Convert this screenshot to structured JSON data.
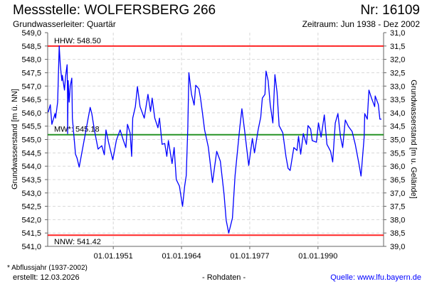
{
  "header": {
    "title": "Messstelle: WOLFERSBERG 266",
    "number": "Nr: 16109",
    "aquifer": "Grundwasserleiter: Quartär",
    "period": "Zeitraum: Jun 1938 - Dez 2002"
  },
  "footer": {
    "note": "* Abflussjahr (1937-2002)",
    "created": "erstellt:  12.03.2026",
    "raw": "- Rohdaten -",
    "source": "Quelle: www.lfu.bayern.de"
  },
  "colors": {
    "series": "#0000ff",
    "extreme": "#ff0000",
    "mean": "#008000",
    "grid": "#d8d8d8"
  },
  "chart_data": {
    "type": "line",
    "ylabel": "Grundwasserstand [m ü. NN]",
    "y2label": "Grundwasserstand [m u. Gelände]",
    "xlim": [
      1938.5,
      2002.5
    ],
    "ylim": [
      541.0,
      549.0
    ],
    "y2lim": [
      31.0,
      39.0
    ],
    "yticks": [
      "549,0",
      "548,5",
      "548,0",
      "547,5",
      "547,0",
      "546,5",
      "546,0",
      "545,5",
      "545,0",
      "544,5",
      "544,0",
      "543,5",
      "543,0",
      "542,5",
      "542,0",
      "541,5",
      "541,0"
    ],
    "y2ticks": [
      "31,0",
      "31,5",
      "32,0",
      "32,5",
      "33,0",
      "33,5",
      "34,0",
      "34,5",
      "35,0",
      "35,5",
      "36,0",
      "36,5",
      "37,0",
      "37,5",
      "38,0",
      "38,5",
      "39,0"
    ],
    "xticks": [
      {
        "year": 1951,
        "label": "01.01.1951"
      },
      {
        "year": 1964,
        "label": "01.01.1964"
      },
      {
        "year": 1977,
        "label": "01.01.1977"
      },
      {
        "year": 1990,
        "label": "01.01.1990"
      }
    ],
    "grid": true,
    "reference_lines": [
      {
        "name": "HHW",
        "label": "HHW: 548.50",
        "value": 548.5,
        "color": "#ff0000"
      },
      {
        "name": "MW",
        "label": "MW*: 545.18",
        "value": 545.18,
        "color": "#008000"
      },
      {
        "name": "NNW",
        "label": "NNW: 541.42",
        "value": 541.42,
        "color": "#ff0000"
      }
    ],
    "series": [
      {
        "name": "Grundwasserstand",
        "points": [
          [
            1938.6,
            546.02
          ],
          [
            1939.0,
            546.3
          ],
          [
            1939.3,
            545.57
          ],
          [
            1939.9,
            545.97
          ],
          [
            1940.0,
            545.8
          ],
          [
            1940.4,
            546.4
          ],
          [
            1940.7,
            548.5
          ],
          [
            1940.9,
            547.8
          ],
          [
            1941.2,
            547.2
          ],
          [
            1941.3,
            547.4
          ],
          [
            1941.7,
            546.85
          ],
          [
            1941.9,
            547.35
          ],
          [
            1942.2,
            547.8
          ],
          [
            1942.3,
            546.5
          ],
          [
            1942.3,
            545.22
          ],
          [
            1942.4,
            547.2
          ],
          [
            1942.6,
            546.4
          ],
          [
            1942.8,
            547.0
          ],
          [
            1943.1,
            547.3
          ],
          [
            1943.2,
            545.8
          ],
          [
            1943.8,
            544.45
          ],
          [
            1944.1,
            544.3
          ],
          [
            1944.5,
            543.97
          ],
          [
            1946.6,
            546.2
          ],
          [
            1946.9,
            545.97
          ],
          [
            1947.4,
            545.36
          ],
          [
            1948.1,
            544.64
          ],
          [
            1948.8,
            544.77
          ],
          [
            1949.3,
            544.43
          ],
          [
            1949.6,
            545.36
          ],
          [
            1950.1,
            544.9
          ],
          [
            1950.9,
            544.24
          ],
          [
            1951.6,
            544.98
          ],
          [
            1952.3,
            545.36
          ],
          [
            1952.9,
            544.98
          ],
          [
            1953.4,
            544.7
          ],
          [
            1953.7,
            545.57
          ],
          [
            1954.2,
            545.25
          ],
          [
            1954.5,
            544.37
          ],
          [
            1954.7,
            545.8
          ],
          [
            1955.2,
            546.23
          ],
          [
            1955.6,
            546.98
          ],
          [
            1956.1,
            546.23
          ],
          [
            1956.9,
            545.8
          ],
          [
            1957.6,
            546.69
          ],
          [
            1958.1,
            546.05
          ],
          [
            1958.4,
            546.55
          ],
          [
            1958.9,
            545.8
          ],
          [
            1959.5,
            545.44
          ],
          [
            1959.8,
            545.8
          ],
          [
            1960.3,
            544.82
          ],
          [
            1960.8,
            544.85
          ],
          [
            1961.2,
            544.37
          ],
          [
            1961.5,
            544.96
          ],
          [
            1962.2,
            544.1
          ],
          [
            1962.6,
            544.7
          ],
          [
            1963.0,
            543.5
          ],
          [
            1963.6,
            543.26
          ],
          [
            1964.2,
            542.5
          ],
          [
            1964.6,
            543.26
          ],
          [
            1964.9,
            543.65
          ],
          [
            1965.2,
            545.44
          ],
          [
            1965.4,
            547.5
          ],
          [
            1965.9,
            546.69
          ],
          [
            1966.4,
            546.29
          ],
          [
            1966.7,
            547.03
          ],
          [
            1967.3,
            546.9
          ],
          [
            1967.6,
            546.58
          ],
          [
            1968.0,
            545.97
          ],
          [
            1968.4,
            545.36
          ],
          [
            1969.1,
            544.72
          ],
          [
            1969.9,
            543.39
          ],
          [
            1970.7,
            544.56
          ],
          [
            1971.4,
            544.19
          ],
          [
            1972.1,
            542.96
          ],
          [
            1972.5,
            541.98
          ],
          [
            1973.0,
            541.5
          ],
          [
            1973.7,
            542.06
          ],
          [
            1974.2,
            543.65
          ],
          [
            1975.1,
            545.44
          ],
          [
            1975.5,
            546.15
          ],
          [
            1976.0,
            545.36
          ],
          [
            1976.8,
            544.03
          ],
          [
            1977.5,
            545.04
          ],
          [
            1977.9,
            544.5
          ],
          [
            1978.6,
            545.36
          ],
          [
            1979.1,
            545.84
          ],
          [
            1979.4,
            546.55
          ],
          [
            1979.9,
            546.69
          ],
          [
            1980.1,
            547.56
          ],
          [
            1980.5,
            547.2
          ],
          [
            1980.9,
            546.31
          ],
          [
            1981.4,
            545.62
          ],
          [
            1981.8,
            547.43
          ],
          [
            1982.2,
            546.77
          ],
          [
            1982.6,
            545.52
          ],
          [
            1983.3,
            545.25
          ],
          [
            1983.9,
            544.37
          ],
          [
            1984.3,
            543.92
          ],
          [
            1984.7,
            543.84
          ],
          [
            1985.4,
            544.7
          ],
          [
            1986.0,
            544.59
          ],
          [
            1986.3,
            545.12
          ],
          [
            1986.7,
            544.45
          ],
          [
            1987.2,
            545.22
          ],
          [
            1987.8,
            544.82
          ],
          [
            1988.1,
            545.52
          ],
          [
            1988.6,
            545.39
          ],
          [
            1988.9,
            544.96
          ],
          [
            1989.7,
            544.9
          ],
          [
            1990.1,
            545.62
          ],
          [
            1990.6,
            545.09
          ],
          [
            1991.2,
            545.92
          ],
          [
            1991.7,
            544.82
          ],
          [
            1992.4,
            544.56
          ],
          [
            1992.8,
            544.16
          ],
          [
            1993.3,
            545.62
          ],
          [
            1993.8,
            545.97
          ],
          [
            1994.3,
            545.09
          ],
          [
            1994.7,
            544.7
          ],
          [
            1995.2,
            545.73
          ],
          [
            1995.8,
            545.49
          ],
          [
            1996.5,
            545.3
          ],
          [
            1997.1,
            544.82
          ],
          [
            1997.8,
            544.1
          ],
          [
            1998.2,
            543.63
          ],
          [
            1998.8,
            545.09
          ],
          [
            1998.9,
            545.97
          ],
          [
            1999.4,
            545.76
          ],
          [
            1999.7,
            546.85
          ],
          [
            2000.2,
            546.55
          ],
          [
            2000.8,
            546.23
          ],
          [
            2000.9,
            546.63
          ],
          [
            2001.5,
            546.31
          ],
          [
            2001.8,
            545.76
          ],
          [
            2002.1,
            545.76
          ]
        ]
      }
    ]
  }
}
